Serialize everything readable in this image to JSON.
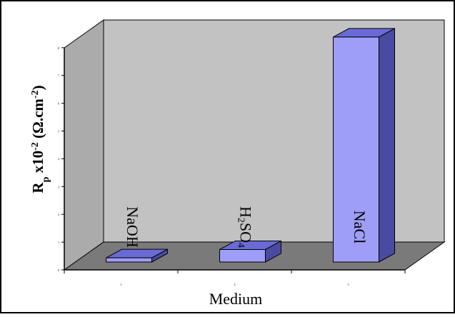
{
  "chart_data": {
    "type": "bar",
    "style": "3d",
    "categories": [
      "1",
      "2",
      "3"
    ],
    "bar_labels": [
      "NaOH",
      "H2SO4",
      "NaCl"
    ],
    "values": [
      0.15,
      0.45,
      8.1
    ],
    "xlabel": "Medium",
    "ylabel": "Rp x10^-2 (Ω.cm^-2)",
    "ylim": [
      0,
      8
    ],
    "yticks": [
      0,
      1,
      2,
      3,
      4,
      5,
      6,
      7,
      8
    ],
    "grid": false,
    "legend": "none"
  },
  "colors": {
    "bar_front": "#9e9ef8",
    "bar_side": "#4a4aa0",
    "bar_top": "#6a6ad6",
    "back_wall": "#c2c2c2",
    "side_wall": "#ababab",
    "floor": "#7a7a7a",
    "frame": "#000000"
  }
}
